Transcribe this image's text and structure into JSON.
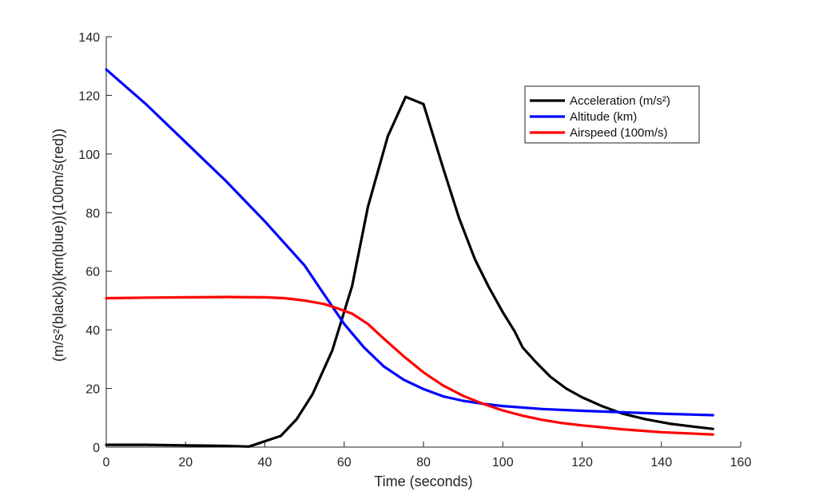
{
  "chart_data": {
    "type": "line",
    "title": "",
    "xlabel": "Time (seconds)",
    "ylabel": "(m/s²(black))(km(blue))(100m/s(red))",
    "xlim": [
      0,
      160
    ],
    "ylim": [
      0,
      140
    ],
    "xticks": [
      "0",
      "20",
      "40",
      "60",
      "80",
      "100",
      "120",
      "140",
      "160"
    ],
    "yticks": [
      "0",
      "20",
      "40",
      "60",
      "80",
      "100",
      "120",
      "140"
    ],
    "grid": false,
    "legend_position": "top-right",
    "series": [
      {
        "name": "Acceleration (m/s²)",
        "color": "#000000",
        "points": [
          [
            0,
            0.8
          ],
          [
            10,
            0.8
          ],
          [
            20,
            0.6
          ],
          [
            30,
            0.4
          ],
          [
            36,
            0.2
          ],
          [
            44,
            3.8
          ],
          [
            48,
            9.5
          ],
          [
            52,
            18
          ],
          [
            57,
            33
          ],
          [
            62,
            55
          ],
          [
            66,
            82
          ],
          [
            71,
            106
          ],
          [
            75.5,
            119.5
          ],
          [
            80,
            117
          ],
          [
            85,
            95
          ],
          [
            89,
            78
          ],
          [
            93,
            64
          ],
          [
            96.5,
            54.5
          ],
          [
            100,
            46
          ],
          [
            103,
            39.5
          ],
          [
            105,
            34
          ],
          [
            108,
            29.5
          ],
          [
            112,
            24
          ],
          [
            116,
            20
          ],
          [
            120,
            17
          ],
          [
            125,
            14
          ],
          [
            130,
            11.5
          ],
          [
            136,
            9.5
          ],
          [
            142,
            8
          ],
          [
            148,
            7
          ],
          [
            153,
            6.2
          ]
        ]
      },
      {
        "name": "Altitude (km)",
        "color": "#0000ff",
        "points": [
          [
            0,
            128.8
          ],
          [
            10,
            117
          ],
          [
            20,
            104
          ],
          [
            30,
            91
          ],
          [
            40,
            77
          ],
          [
            50,
            62
          ],
          [
            55,
            52
          ],
          [
            60,
            42
          ],
          [
            65,
            34
          ],
          [
            70,
            27.5
          ],
          [
            75,
            23
          ],
          [
            80,
            19.8
          ],
          [
            85,
            17.3
          ],
          [
            90,
            15.8
          ],
          [
            95,
            14.8
          ],
          [
            100,
            14
          ],
          [
            110,
            13
          ],
          [
            120,
            12.4
          ],
          [
            130,
            11.9
          ],
          [
            140,
            11.4
          ],
          [
            153,
            10.9
          ]
        ]
      },
      {
        "name": "Airspeed (100m/s)",
        "color": "#ff0000",
        "points": [
          [
            0,
            50.8
          ],
          [
            10,
            51
          ],
          [
            20,
            51.1
          ],
          [
            30,
            51.2
          ],
          [
            40,
            51.1
          ],
          [
            45,
            50.8
          ],
          [
            50,
            50
          ],
          [
            55,
            48.8
          ],
          [
            58,
            47.5
          ],
          [
            62,
            45.5
          ],
          [
            66,
            42
          ],
          [
            70,
            37
          ],
          [
            75,
            31
          ],
          [
            80,
            25.5
          ],
          [
            85,
            21
          ],
          [
            90,
            17.5
          ],
          [
            95,
            14.8
          ],
          [
            100,
            12.5
          ],
          [
            105,
            10.7
          ],
          [
            110,
            9.3
          ],
          [
            115,
            8.2
          ],
          [
            120,
            7.4
          ],
          [
            130,
            6.1
          ],
          [
            140,
            5.1
          ],
          [
            153,
            4.3
          ]
        ]
      }
    ]
  }
}
